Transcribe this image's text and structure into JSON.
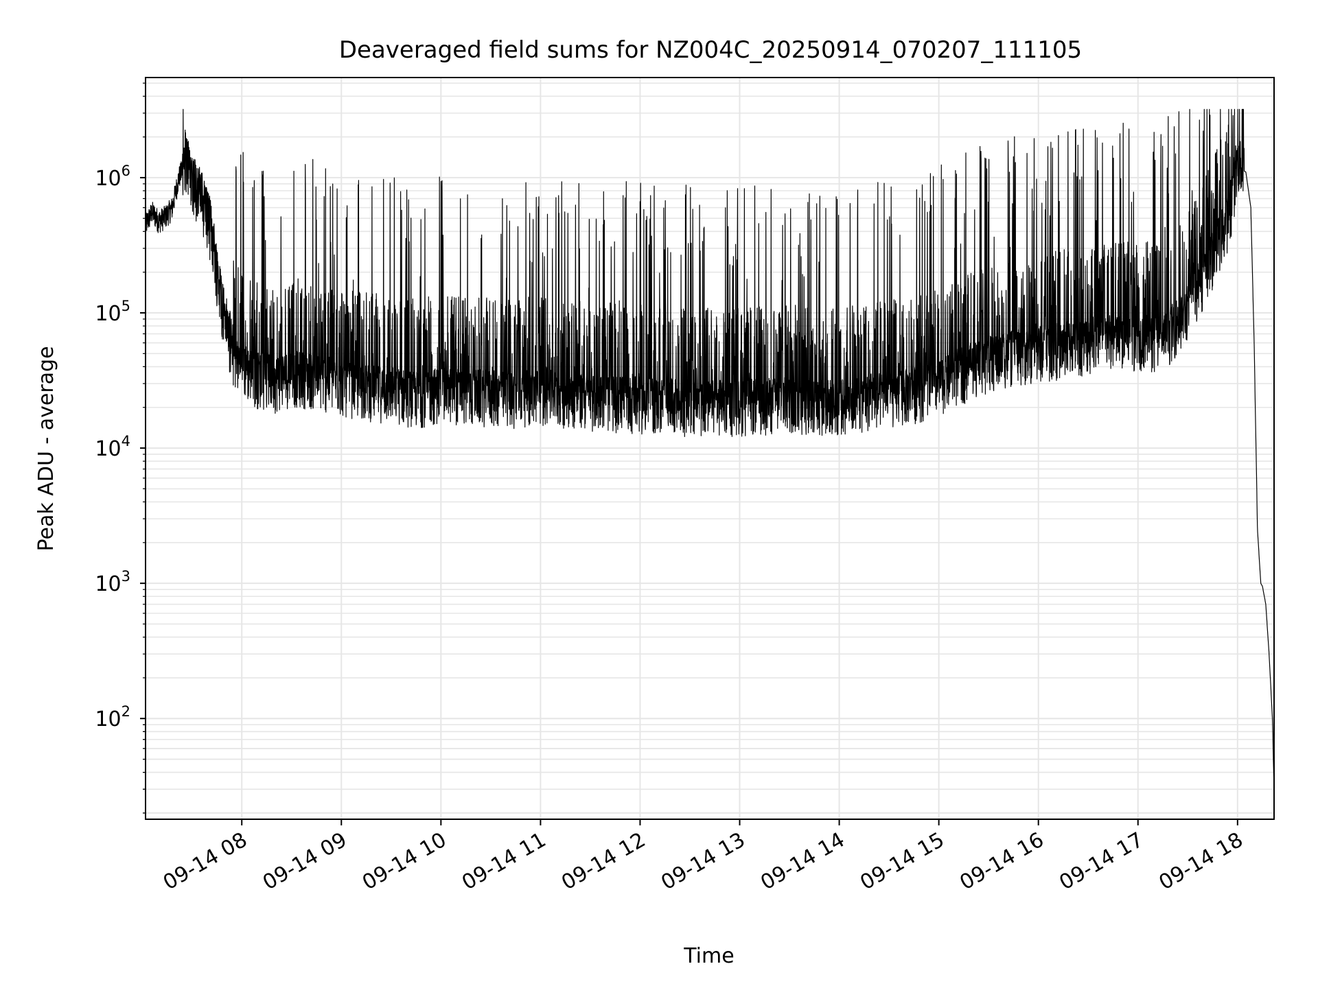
{
  "chart_data": {
    "type": "line",
    "title": "Deaveraged field sums for NZ004C_20250914_070207_111105",
    "xlabel": "Time",
    "ylabel": "Peak ADU - average",
    "yscale": "log",
    "ylim": [
      18,
      5500000
    ],
    "xlim": [
      "09-14 07:02",
      "09-14 18:22"
    ],
    "grid": "on (major and minor)",
    "line_color": "#000000",
    "grid_color": "#e6e6e6",
    "x_tick_labels": [
      "09-14 08",
      "09-14 09",
      "09-14 10",
      "09-14 11",
      "09-14 12",
      "09-14 13",
      "09-14 14",
      "09-14 15",
      "09-14 16",
      "09-14 17",
      "09-14 18"
    ],
    "y_tick_labels": [
      {
        "base": "10",
        "exp": "2",
        "value": 100
      },
      {
        "base": "10",
        "exp": "3",
        "value": 1000
      },
      {
        "base": "10",
        "exp": "4",
        "value": 10000
      },
      {
        "base": "10",
        "exp": "5",
        "value": 100000
      },
      {
        "base": "10",
        "exp": "6",
        "value": 1000000
      }
    ],
    "series": [
      {
        "x": [
          "07:02",
          "07:06",
          "07:10",
          "07:14",
          "07:18",
          "07:22",
          "07:26",
          "07:30",
          "07:34",
          "07:38",
          "07:42",
          "07:46",
          "07:50",
          "07:55",
          "08:00",
          "08:10",
          "08:20",
          "08:30",
          "08:40",
          "08:50",
          "09:00",
          "09:15",
          "09:30",
          "09:45",
          "10:00",
          "10:20",
          "10:40",
          "11:00",
          "11:30",
          "12:00",
          "12:30",
          "13:00",
          "13:30",
          "14:00",
          "14:20",
          "14:40",
          "15:00",
          "15:20",
          "15:40",
          "16:00",
          "16:20",
          "16:40",
          "17:00",
          "17:15",
          "17:30",
          "17:45",
          "17:55",
          "18:00",
          "18:05",
          "18:08",
          "18:10",
          "18:12",
          "18:14",
          "18:15",
          "18:17",
          "18:19",
          "18:21",
          "18:22"
        ],
        "y": [
          450000,
          560000,
          480000,
          520000,
          600000,
          1000000,
          1300000,
          900000,
          700000,
          550000,
          350000,
          150000,
          80000,
          45000,
          38000,
          32000,
          30000,
          33000,
          32000,
          30000,
          28000,
          26000,
          25000,
          23000,
          25000,
          24000,
          23000,
          24000,
          22000,
          21000,
          20000,
          20000,
          21000,
          20000,
          22000,
          24000,
          28000,
          38000,
          45000,
          50000,
          55000,
          60000,
          62000,
          60000,
          100000,
          250000,
          500000,
          1200000,
          1100000,
          600000,
          60000,
          2500,
          1000,
          950,
          700,
          300,
          100,
          30
        ]
      }
    ]
  }
}
